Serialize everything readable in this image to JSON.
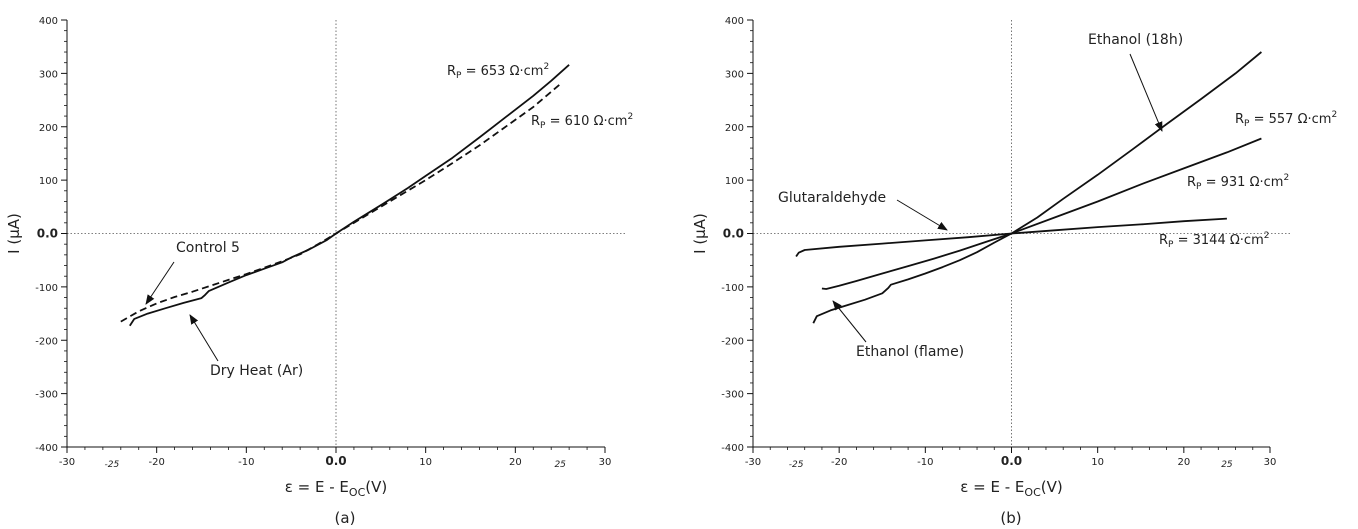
{
  "chart_data": [
    {
      "type": "line",
      "panel_label": "(a)",
      "xlabel": "ε = E - E",
      "xlabel_sub": "OC",
      "xlabel_unit": "(V)",
      "ylabel": "I (μA)",
      "xlim": [
        -30,
        30
      ],
      "ylim": [
        -400,
        400
      ],
      "xticks": [
        -30,
        -20,
        -10,
        0,
        10,
        20,
        30
      ],
      "xtick_labels": [
        "-30",
        "-20",
        "-10",
        "0.0",
        "10",
        "20",
        "30"
      ],
      "extra_xticks": [
        -25,
        25
      ],
      "extra_xtick_labels": [
        "-25",
        "25"
      ],
      "yticks": [
        -400,
        -300,
        -200,
        -100,
        0,
        100,
        200,
        300,
        400
      ],
      "ytick_labels": [
        "-400",
        "-300",
        "-200",
        "-100",
        "0.0",
        "100",
        "200",
        "300",
        "400"
      ],
      "series": [
        {
          "name": "Dry Heat (Ar)",
          "style": "solid",
          "x": [
            -23,
            -22.5,
            -21,
            -19,
            -17,
            -15,
            -14.6,
            -14.2,
            -12,
            -10,
            -8,
            -6,
            -5,
            -3,
            -1,
            0,
            2,
            5,
            8,
            10,
            13,
            16,
            19,
            22,
            24,
            26
          ],
          "y": [
            -173,
            -160,
            -150,
            -140,
            -130,
            -121,
            -115,
            -108,
            -92,
            -78,
            -66,
            -54,
            -45,
            -30,
            -12,
            0,
            22,
            53,
            85,
            108,
            142,
            180,
            219,
            258,
            286,
            316
          ]
        },
        {
          "name": "Control 5",
          "style": "dashed",
          "x": [
            -24,
            -22,
            -20,
            -18,
            -16,
            -14,
            -12,
            -10,
            -8,
            -6,
            -4,
            -2,
            0,
            2,
            5,
            8,
            10,
            13,
            16,
            19,
            22,
            25
          ],
          "y": [
            -165,
            -146,
            -131,
            -119,
            -109,
            -98,
            -87,
            -76,
            -64,
            -52,
            -39,
            -20,
            0,
            20,
            50,
            80,
            100,
            132,
            165,
            201,
            237,
            280
          ]
        }
      ],
      "annotations": [
        {
          "text": "Control 5",
          "series": "Control 5"
        },
        {
          "text": "Dry Heat (Ar)",
          "series": "Dry Heat (Ar)"
        }
      ],
      "rp_labels": [
        {
          "text": "R",
          "sub": "P",
          "value": " = 653 Ω·cm",
          "sup": "2"
        },
        {
          "text": "R",
          "sub": "P",
          "value": " = 610 Ω·cm",
          "sup": "2"
        }
      ]
    },
    {
      "type": "line",
      "panel_label": "(b)",
      "xlabel": "ε = E - E",
      "xlabel_sub": "OC",
      "xlabel_unit": "(V)",
      "ylabel": "I (μA)",
      "xlim": [
        -30,
        30
      ],
      "ylim": [
        -400,
        400
      ],
      "xticks": [
        -30,
        -20,
        -10,
        0,
        10,
        20,
        30
      ],
      "xtick_labels": [
        "-30",
        "-20",
        "-10",
        "0.0",
        "10",
        "20",
        "30"
      ],
      "extra_xticks": [
        -25,
        25
      ],
      "extra_xtick_labels": [
        "-25",
        "25"
      ],
      "yticks": [
        -400,
        -300,
        -200,
        -100,
        0,
        100,
        200,
        300,
        400
      ],
      "ytick_labels": [
        "-400",
        "-300",
        "-200",
        "-100",
        "0.0",
        "100",
        "200",
        "300",
        "400"
      ],
      "series": [
        {
          "name": "Ethanol (18h)",
          "style": "solid",
          "x": [
            -23,
            -22.6,
            -21,
            -19,
            -17,
            -15,
            -14.3,
            -14,
            -12,
            -10,
            -8,
            -6,
            -4,
            -2,
            0,
            3,
            6,
            10,
            14,
            18,
            22,
            26,
            29
          ],
          "y": [
            -168,
            -155,
            -144,
            -134,
            -124,
            -112,
            -102,
            -96,
            -86,
            -75,
            -63,
            -50,
            -35,
            -17,
            0,
            30,
            65,
            110,
            157,
            205,
            252,
            300,
            340
          ]
        },
        {
          "name": "Ethanol (flame)",
          "style": "solid",
          "x": [
            -22,
            -21.5,
            -20,
            -18,
            -15,
            -12,
            -9,
            -6,
            -3,
            0,
            5,
            10,
            15,
            20,
            25,
            29
          ],
          "y": [
            -103,
            -104,
            -98,
            -89,
            -75,
            -61,
            -47,
            -32,
            -16,
            0,
            30,
            60,
            92,
            122,
            152,
            178
          ]
        },
        {
          "name": "Glutaraldehyde",
          "style": "solid",
          "x": [
            -25,
            -24.7,
            -24,
            -20,
            -15,
            -10,
            -5,
            0,
            5,
            10,
            15,
            20,
            25
          ],
          "y": [
            -43,
            -36,
            -31,
            -25,
            -19,
            -13,
            -7,
            0,
            6,
            12,
            17,
            23,
            28
          ]
        }
      ],
      "annotations": [
        {
          "text": "Ethanol (18h)",
          "series": "Ethanol (18h)"
        },
        {
          "text": "Glutaraldehyde",
          "series": "Glutaraldehyde"
        },
        {
          "text": "Ethanol (flame)",
          "series": "Ethanol (flame)"
        }
      ],
      "rp_labels": [
        {
          "text": "R",
          "sub": "P",
          "value": " = 557 Ω·cm",
          "sup": "2"
        },
        {
          "text": "R",
          "sub": "P",
          "value": " = 931 Ω·cm",
          "sup": "2"
        },
        {
          "text": "R",
          "sub": "P",
          "value": " = 3144 Ω·cm",
          "sup": "2"
        }
      ]
    }
  ]
}
